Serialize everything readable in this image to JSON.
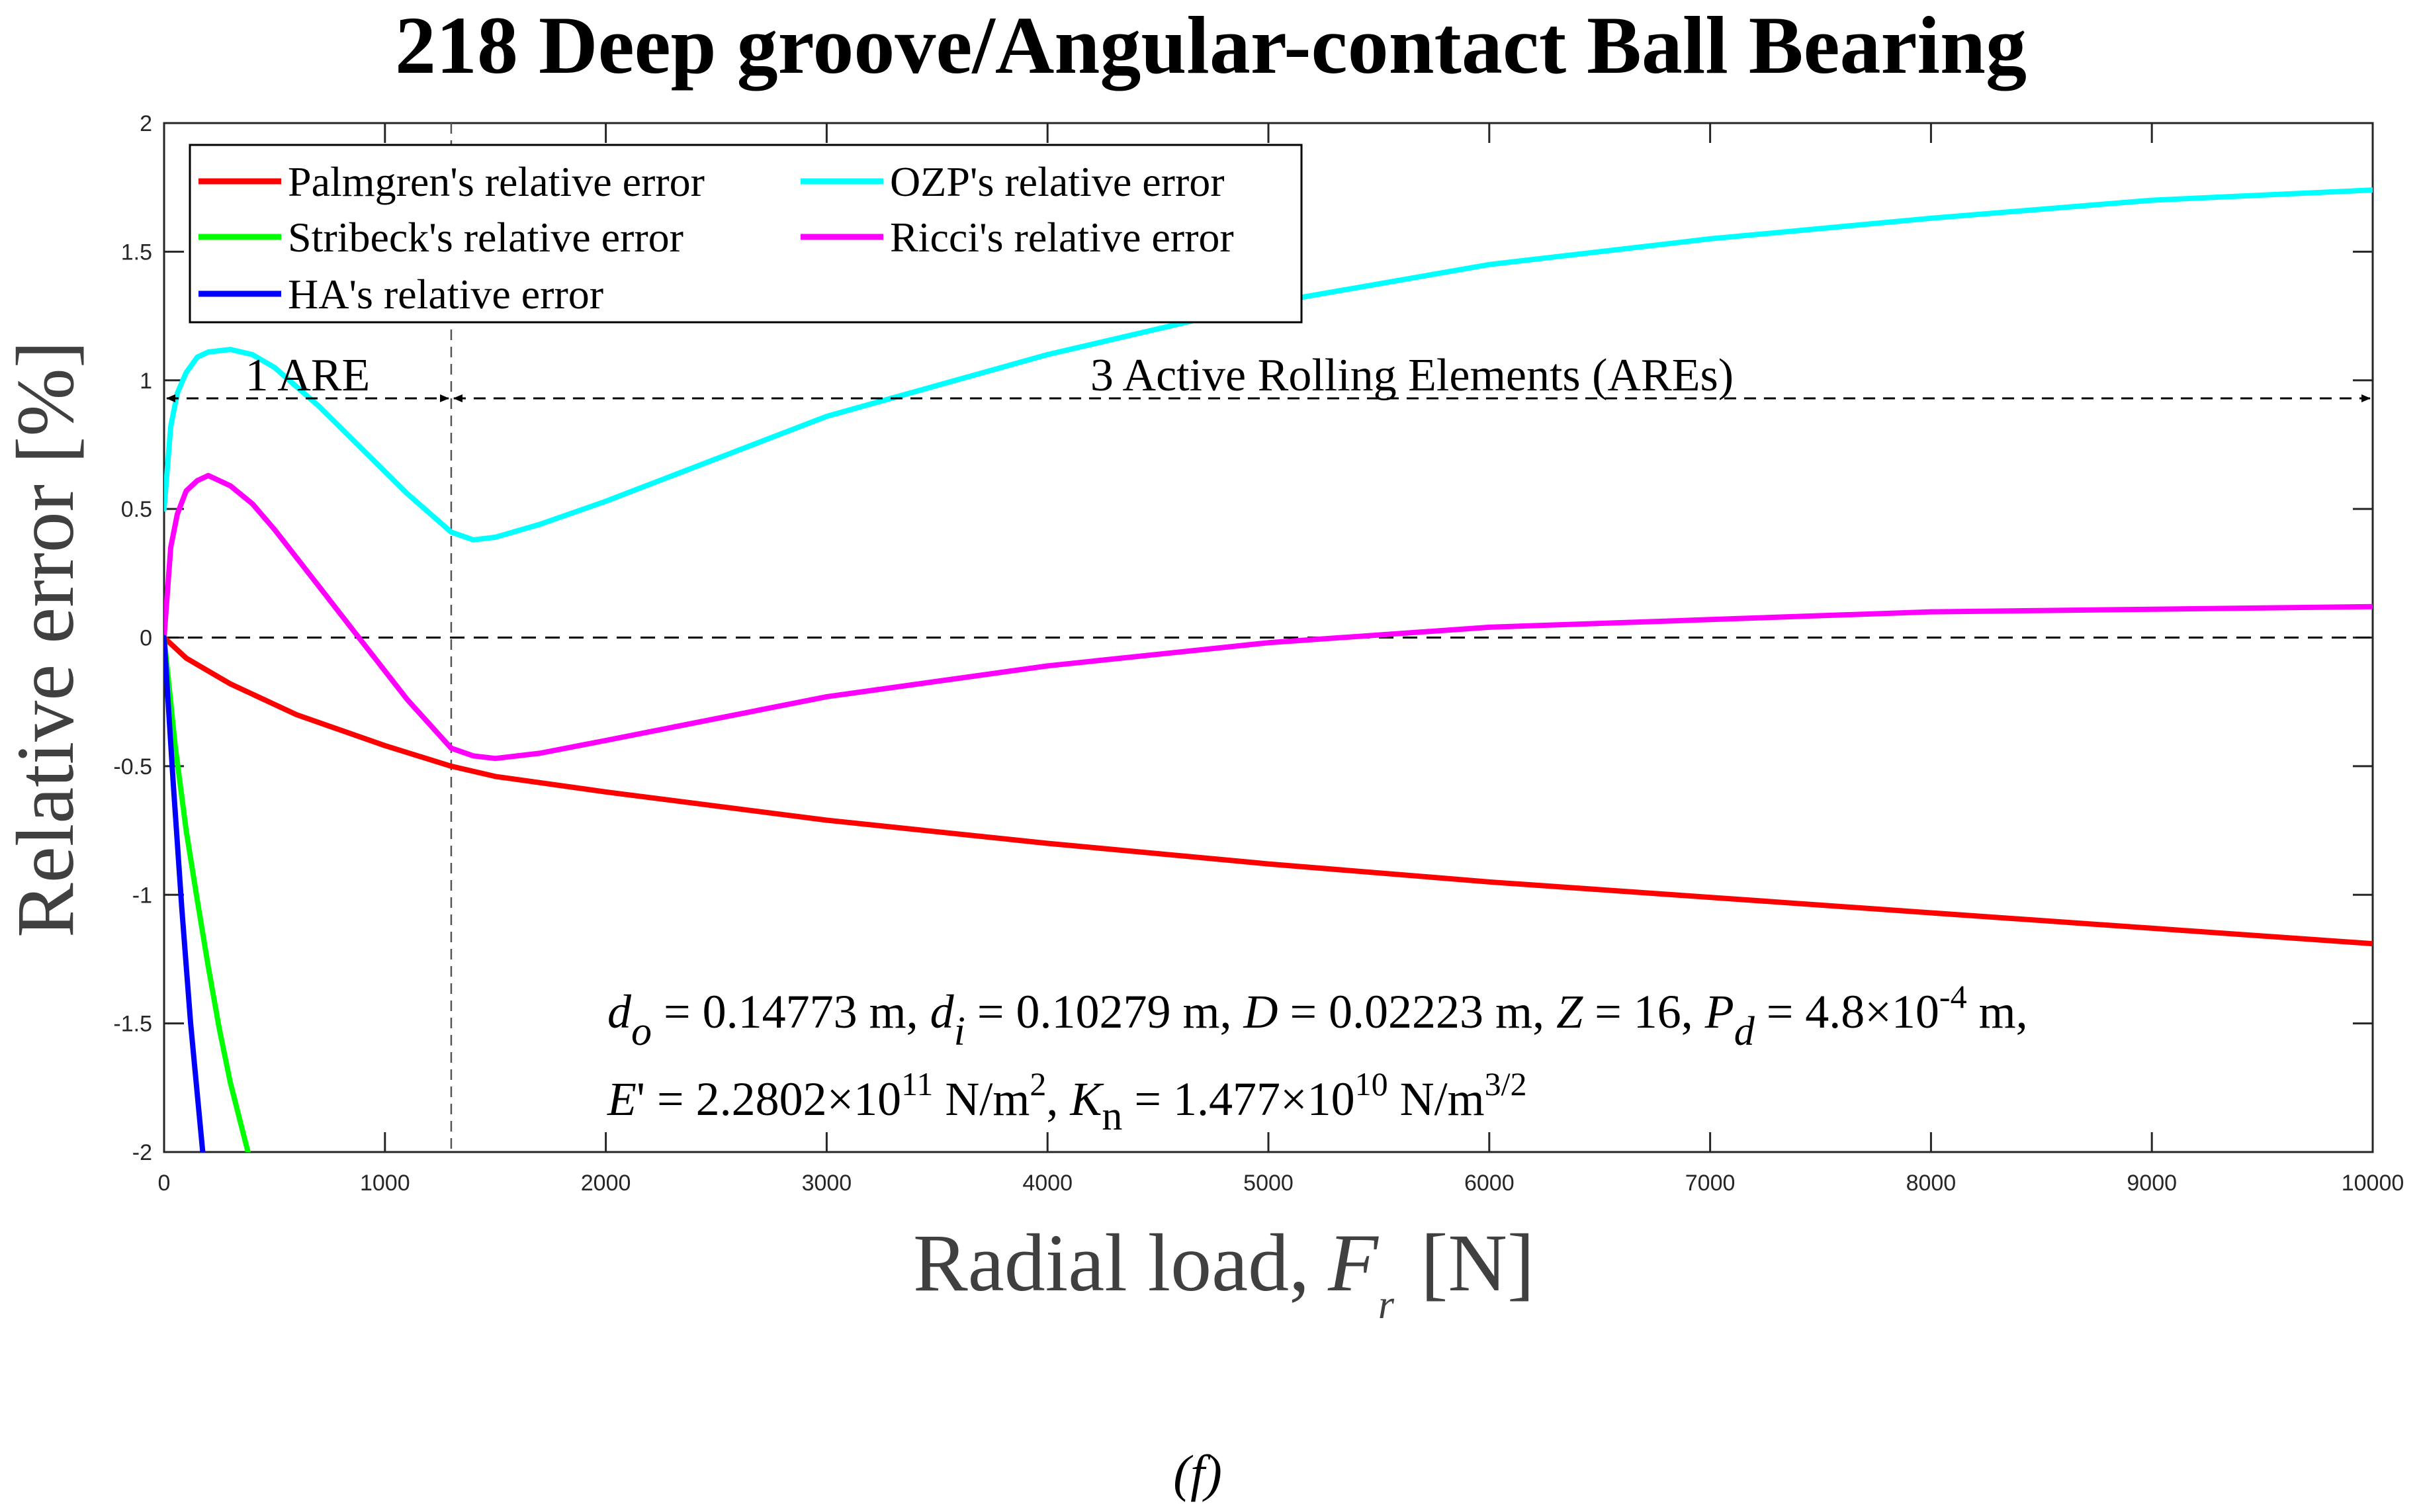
{
  "chart_data": {
    "type": "line",
    "title": "218 Deep groove/Angular-contact Ball Bearing",
    "xlabel": "Radial load,",
    "xlabel_symbol": "F",
    "xlabel_subscript": "r",
    "xlabel_unit": "[N]",
    "ylabel": "Relative error [%]",
    "xlim": [
      0,
      10000
    ],
    "ylim": [
      -2,
      2
    ],
    "xticks": [
      0,
      1000,
      2000,
      3000,
      4000,
      5000,
      6000,
      7000,
      8000,
      9000,
      10000
    ],
    "yticks": [
      -2,
      -1.5,
      -1,
      -0.5,
      0,
      0.5,
      1,
      1.5,
      2
    ],
    "xtick_labels": [
      "0",
      "1000",
      "2000",
      "3000",
      "4000",
      "5000",
      "6000",
      "7000",
      "8000",
      "9000",
      "10000"
    ],
    "ytick_labels": [
      "-2",
      "-1.5",
      "-1",
      "-0.5",
      "0",
      "0.5",
      "1",
      "1.5",
      "2"
    ],
    "legend": {
      "position": "top-left",
      "entries": [
        {
          "label": "Palmgren's relative error",
          "color": "#ff0000"
        },
        {
          "label": "OZP's relative error",
          "color": "#00ffff"
        },
        {
          "label": "Stribeck's relative error",
          "color": "#00ff00"
        },
        {
          "label": "Ricci's relative error",
          "color": "#ff00ff"
        },
        {
          "label": "HA's relative error",
          "color": "#0000ff"
        }
      ]
    },
    "series": [
      {
        "name": "Palmgren's relative error",
        "color": "#ff0000",
        "x": [
          0,
          100,
          300,
          600,
          1000,
          1300,
          1500,
          2000,
          3000,
          4000,
          5000,
          6000,
          7000,
          8000,
          9000,
          10000
        ],
        "y": [
          0,
          -0.08,
          -0.18,
          -0.3,
          -0.42,
          -0.5,
          -0.54,
          -0.6,
          -0.71,
          -0.8,
          -0.88,
          -0.95,
          -1.01,
          -1.07,
          -1.13,
          -1.19
        ]
      },
      {
        "name": "OZP's relative error",
        "color": "#00ffff",
        "x": [
          0,
          30,
          60,
          100,
          150,
          200,
          300,
          400,
          500,
          700,
          900,
          1100,
          1300,
          1400,
          1500,
          1700,
          2000,
          3000,
          4000,
          5000,
          6000,
          7000,
          8000,
          9000,
          10000
        ],
        "y": [
          0.5,
          0.82,
          0.95,
          1.03,
          1.09,
          1.11,
          1.12,
          1.1,
          1.05,
          0.9,
          0.73,
          0.56,
          0.41,
          0.38,
          0.39,
          0.44,
          0.53,
          0.86,
          1.1,
          1.3,
          1.45,
          1.55,
          1.63,
          1.7,
          1.74
        ]
      },
      {
        "name": "Ricci's relative error",
        "color": "#ff00ff",
        "x": [
          0,
          30,
          60,
          100,
          150,
          200,
          300,
          400,
          500,
          700,
          900,
          1100,
          1300,
          1400,
          1500,
          1700,
          2000,
          3000,
          4000,
          5000,
          6000,
          7000,
          8000,
          9000,
          10000
        ],
        "y": [
          0,
          0.35,
          0.48,
          0.57,
          0.61,
          0.63,
          0.59,
          0.52,
          0.42,
          0.2,
          -0.02,
          -0.24,
          -0.43,
          -0.46,
          -0.47,
          -0.45,
          -0.4,
          -0.23,
          -0.11,
          -0.02,
          0.04,
          0.07,
          0.1,
          0.11,
          0.12
        ]
      },
      {
        "name": "Stribeck's relative error",
        "color": "#00ff00",
        "x": [
          0,
          50,
          100,
          150,
          200,
          250,
          300,
          380
        ],
        "y": [
          0,
          -0.42,
          -0.75,
          -1.02,
          -1.28,
          -1.52,
          -1.73,
          -2.0
        ]
      },
      {
        "name": "HA's relative error",
        "color": "#0000ff",
        "x": [
          0,
          40,
          80,
          120,
          175
        ],
        "y": [
          0,
          -0.55,
          -1.05,
          -1.5,
          -2.0
        ]
      }
    ],
    "reference_lines": [
      {
        "orientation": "horizontal",
        "y": 0,
        "style": "dashed"
      },
      {
        "orientation": "vertical",
        "x": 1300,
        "style": "dashed"
      }
    ],
    "annotations": [
      {
        "text": "1 ARE",
        "x_from": 0,
        "x_to": 1300,
        "y": 0.93
      },
      {
        "text": "3 Active Rolling Elements (AREs)",
        "x_from": 1300,
        "x_to": 10000,
        "y": 0.93
      }
    ],
    "parameters": {
      "line1": {
        "do_sym": "d",
        "do_sub": "o",
        "do_val": " = 0.14773 m, ",
        "di_sym": "d",
        "di_sub": "i",
        "di_val": " = 0.10279 m, ",
        "D_sym": "D",
        "D_val": " = 0.02223 m, ",
        "Z_sym": "Z",
        "Z_val": " = 16, ",
        "Pd_sym": "P",
        "Pd_sub": "d",
        "Pd_val": " = 4.8×10",
        "Pd_exp": "-4",
        "Pd_unit": " m,"
      },
      "line2": {
        "E_sym": "E",
        "E_val": "' = 2.2802×10",
        "E_exp": "11",
        "E_unit": " N/m",
        "E_unit_exp": "2",
        "sep": ", ",
        "K_sym": "K",
        "K_sub": "n",
        "K_val": " = 1.477×10",
        "K_exp": "10",
        "K_unit": " N/m",
        "K_unit_exp": "3/2"
      }
    },
    "caption": "(f)"
  }
}
